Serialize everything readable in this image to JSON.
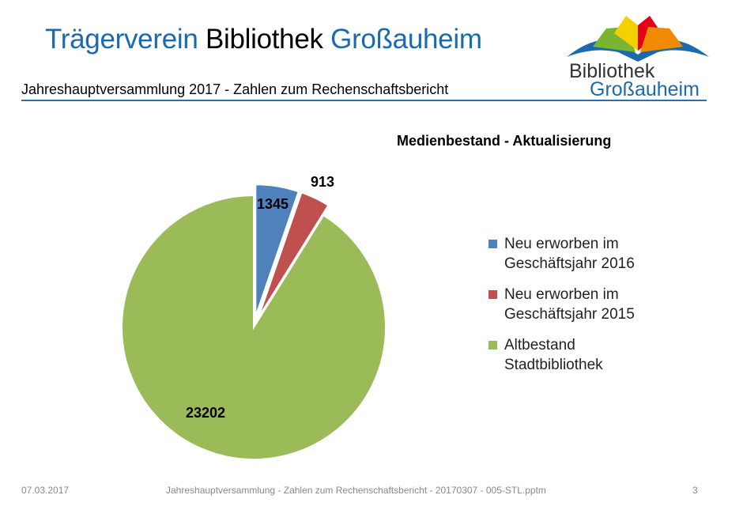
{
  "header": {
    "title_part1": "Trägerverein",
    "title_part2": "Bibliothek",
    "title_part3": "Großauheim",
    "subtitle": "Jahreshauptversammlung 2017 - Zahlen zum Rechenschaftsbericht"
  },
  "logo": {
    "line1": "Bibliothek",
    "line2": "Großauheim"
  },
  "chart_data": {
    "type": "pie",
    "title": "Medienbestand - Aktualisierung",
    "categories": [
      "Neu erworben im Geschäftsjahr 2016",
      "Neu erworben im Geschäftsjahr 2015",
      "Altbestand Stadtbibliothek"
    ],
    "legend_lines": [
      [
        "Neu erworben im",
        "Geschäftsjahr 2016"
      ],
      [
        "Neu erworben im",
        "Geschäftsjahr 2015"
      ],
      [
        "Altbestand",
        "Stadtbibliothek"
      ]
    ],
    "values": [
      1345,
      913,
      23202
    ],
    "colors": [
      "#4f81bd",
      "#c0504d",
      "#9bbb59"
    ],
    "exploded": [
      true,
      true,
      false
    ],
    "legend_position": "right"
  },
  "footer": {
    "date": "07.03.2017",
    "text": "Jahreshauptversammlung - Zahlen zum Rechenschaftsbericht - 20170307 - 005-STL.pptm",
    "page": "3"
  }
}
